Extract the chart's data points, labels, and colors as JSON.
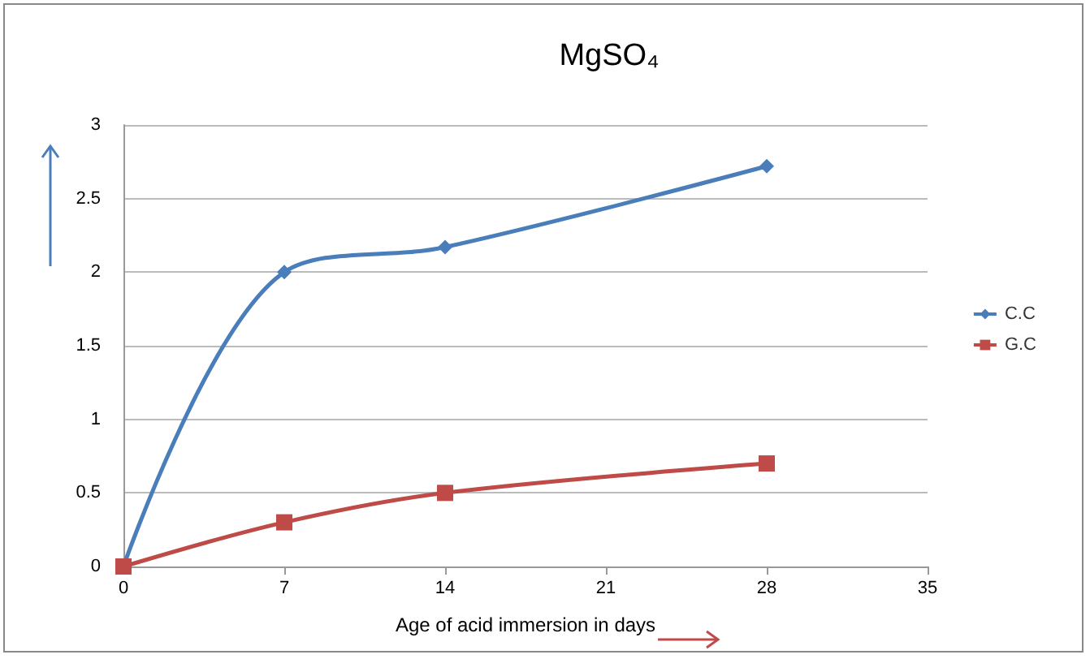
{
  "chart_data": {
    "type": "line",
    "title": "MgSO₄",
    "xlabel": "Age of acid immersion in days",
    "x": [
      0,
      7,
      14,
      28
    ],
    "series": [
      {
        "name": "C.C",
        "color": "#4a7ebb",
        "values": [
          0,
          2.0,
          2.17,
          2.72
        ],
        "marker": "diamond"
      },
      {
        "name": "G.C",
        "color": "#be4b48",
        "values": [
          0,
          0.3,
          0.5,
          0.7
        ],
        "marker": "square"
      }
    ],
    "xlim": [
      0,
      35
    ],
    "xticks": [
      0,
      7,
      14,
      21,
      28,
      35
    ],
    "ylim": [
      0,
      3
    ],
    "yticks": [
      0,
      0.5,
      1,
      1.5,
      2,
      2.5,
      3
    ],
    "grid": "y",
    "legend": "right",
    "line_style": "solid"
  }
}
